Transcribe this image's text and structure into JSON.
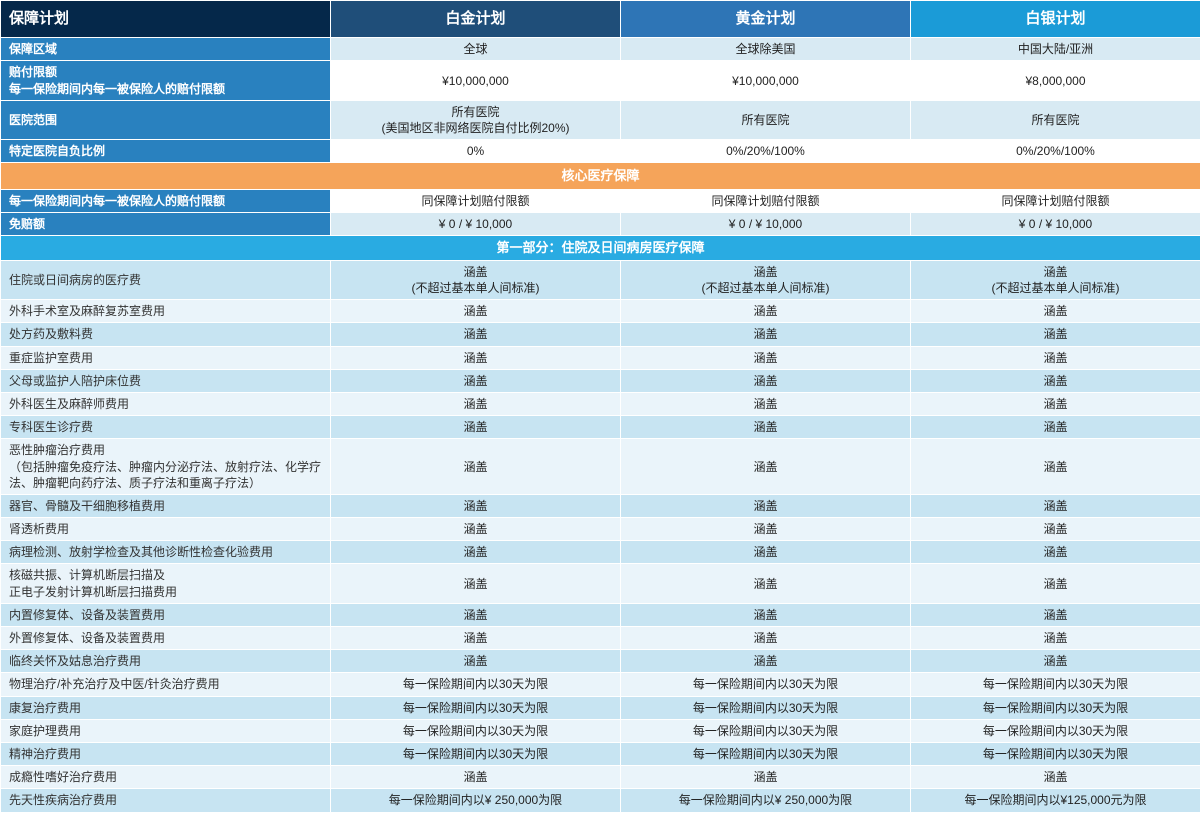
{
  "colors": {
    "hdr_label_bg": "#05284a",
    "hdr_plan1_bg": "#1f4e79",
    "hdr_plan2_bg": "#2e75b6",
    "hdr_plan3_bg": "#1b9bd7",
    "rowlabel_bg": "#2981bf",
    "val_bg_light": "#d8eaf3",
    "val_bg_white": "#ffffff",
    "section_band_bg": "#f5a45a",
    "sub_band_bg": "#29abe2",
    "detail_even_bg": "#c7e4f2",
    "detail_odd_bg": "#eaf4fa"
  },
  "columns": {
    "label": "保障计划",
    "plan1": "白金计划",
    "plan2": "黄金计划",
    "plan3": "白银计划"
  },
  "col_widths": [
    "330px",
    "290px",
    "290px",
    "290px"
  ],
  "top_rows": [
    {
      "label": "保障区域",
      "vals": [
        "全球",
        "全球除美国",
        "中国大陆/亚洲"
      ]
    },
    {
      "label": "赔付限额\n每一保险期间内每一被保险人的赔付限额",
      "vals": [
        "¥10,000,000",
        "¥10,000,000",
        "¥8,000,000"
      ]
    },
    {
      "label": "医院范围",
      "vals": [
        "所有医院\n(美国地区非网络医院自付比例20%)",
        "所有医院",
        "所有医院"
      ]
    },
    {
      "label": "特定医院自负比例",
      "vals": [
        "0%",
        "0%/20%/100%",
        "0%/20%/100%"
      ]
    }
  ],
  "section_band": "核心医疗保障",
  "mid_rows": [
    {
      "label": "每一保险期间内每一被保险人的赔付限额",
      "vals": [
        "同保障计划赔付限额",
        "同保障计划赔付限额",
        "同保障计划赔付限额"
      ]
    },
    {
      "label": "免赔额",
      "vals": [
        "¥ 0 / ¥ 10,000",
        "¥ 0 / ¥ 10,000",
        "¥ 0 / ¥ 10,000"
      ]
    }
  ],
  "sub_band": "第一部分：住院及日间病房医疗保障",
  "detail_rows": [
    {
      "label": "住院或日间病房的医疗费",
      "vals": [
        "涵盖\n(不超过基本单人间标准)",
        "涵盖\n(不超过基本单人间标准)",
        "涵盖\n(不超过基本单人间标准)"
      ]
    },
    {
      "label": "外科手术室及麻醉复苏室费用",
      "vals": [
        "涵盖",
        "涵盖",
        "涵盖"
      ]
    },
    {
      "label": "处方药及敷料费",
      "vals": [
        "涵盖",
        "涵盖",
        "涵盖"
      ]
    },
    {
      "label": "重症监护室费用",
      "vals": [
        "涵盖",
        "涵盖",
        "涵盖"
      ]
    },
    {
      "label": "父母或监护人陪护床位费",
      "vals": [
        "涵盖",
        "涵盖",
        "涵盖"
      ]
    },
    {
      "label": "外科医生及麻醉师费用",
      "vals": [
        "涵盖",
        "涵盖",
        "涵盖"
      ]
    },
    {
      "label": "专科医生诊疗费",
      "vals": [
        "涵盖",
        "涵盖",
        "涵盖"
      ]
    },
    {
      "label": "恶性肿瘤治疗费用\n（包括肿瘤免疫疗法、肿瘤内分泌疗法、放射疗法、化学疗法、肿瘤靶向药疗法、质子疗法和重离子疗法）",
      "vals": [
        "涵盖",
        "涵盖",
        "涵盖"
      ]
    },
    {
      "label": "器官、骨髓及干细胞移植费用",
      "vals": [
        "涵盖",
        "涵盖",
        "涵盖"
      ]
    },
    {
      "label": "肾透析费用",
      "vals": [
        "涵盖",
        "涵盖",
        "涵盖"
      ]
    },
    {
      "label": "病理检测、放射学检查及其他诊断性检查化验费用",
      "vals": [
        "涵盖",
        "涵盖",
        "涵盖"
      ]
    },
    {
      "label": "核磁共振、计算机断层扫描及\n正电子发射计算机断层扫描费用",
      "vals": [
        "涵盖",
        "涵盖",
        "涵盖"
      ]
    },
    {
      "label": "内置修复体、设备及装置费用",
      "vals": [
        "涵盖",
        "涵盖",
        "涵盖"
      ]
    },
    {
      "label": "外置修复体、设备及装置费用",
      "vals": [
        "涵盖",
        "涵盖",
        "涵盖"
      ]
    },
    {
      "label": "临终关怀及姑息治疗费用",
      "vals": [
        "涵盖",
        "涵盖",
        "涵盖"
      ]
    },
    {
      "label": "物理治疗/补充治疗及中医/针灸治疗费用",
      "vals": [
        "每一保险期间内以30天为限",
        "每一保险期间内以30天为限",
        "每一保险期间内以30天为限"
      ]
    },
    {
      "label": "康复治疗费用",
      "vals": [
        "每一保险期间内以30天为限",
        "每一保险期间内以30天为限",
        "每一保险期间内以30天为限"
      ]
    },
    {
      "label": "家庭护理费用",
      "vals": [
        "每一保险期间内以30天为限",
        "每一保险期间内以30天为限",
        "每一保险期间内以30天为限"
      ]
    },
    {
      "label": "精神治疗费用",
      "vals": [
        "每一保险期间内以30天为限",
        "每一保险期间内以30天为限",
        "每一保险期间内以30天为限"
      ]
    },
    {
      "label": "成瘾性嗜好治疗费用",
      "vals": [
        "涵盖",
        "涵盖",
        "涵盖"
      ]
    },
    {
      "label": "先天性疾病治疗费用",
      "vals": [
        "每一保险期间内以¥ 250,000为限",
        "每一保险期间内以¥ 250,000为限",
        "每一保险期间内以¥125,000元为限"
      ]
    }
  ]
}
